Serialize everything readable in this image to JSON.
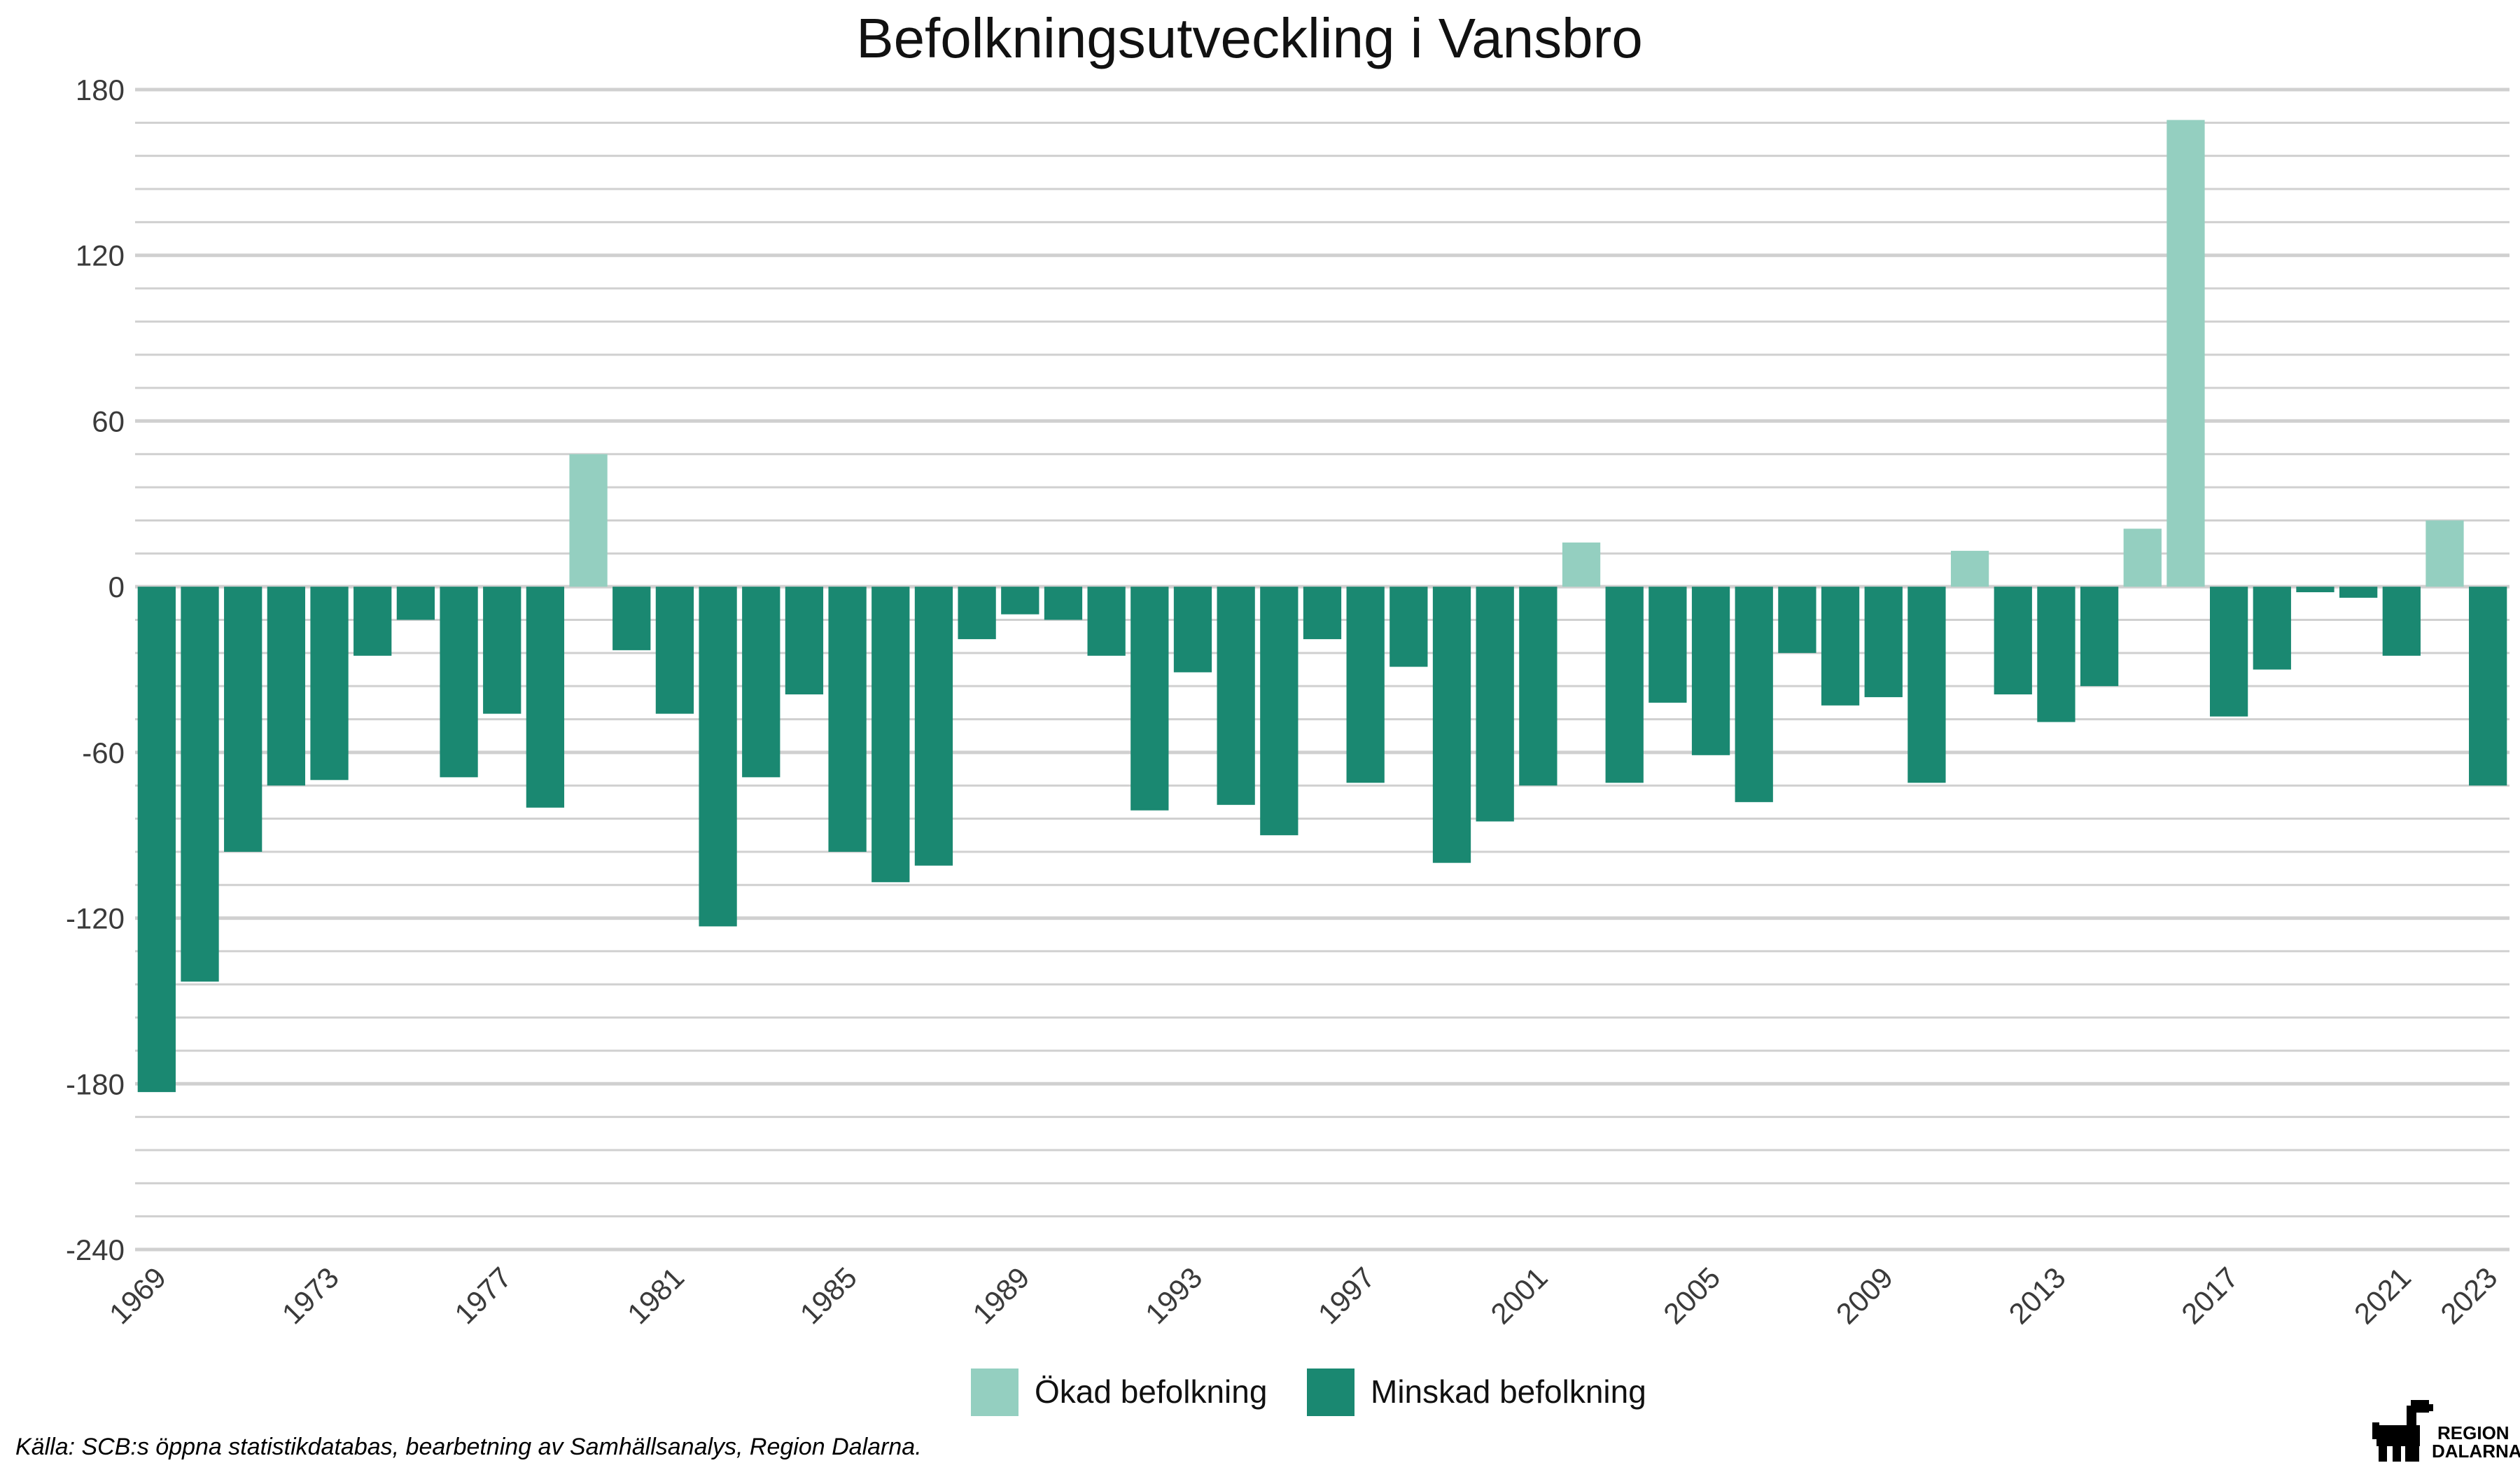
{
  "chart_data": {
    "type": "bar",
    "title": "Befolkningsutveckling i Vansbro",
    "xlabel": "",
    "ylabel": "",
    "ylim": [
      -240,
      180
    ],
    "yticks": [
      "180",
      "120",
      "60",
      "0",
      "-60",
      "-120",
      "-180",
      "-240"
    ],
    "ytick_values": [
      180,
      120,
      60,
      0,
      -60,
      -120,
      -180,
      -240
    ],
    "categories": [
      "1969",
      "1970",
      "1971",
      "1972",
      "1973",
      "1974",
      "1975",
      "1976",
      "1977",
      "1978",
      "1979",
      "1980",
      "1981",
      "1982",
      "1983",
      "1984",
      "1985",
      "1986",
      "1987",
      "1988",
      "1989",
      "1990",
      "1991",
      "1992",
      "1993",
      "1994",
      "1995",
      "1996",
      "1997",
      "1998",
      "1999",
      "2000",
      "2001",
      "2002",
      "2003",
      "2004",
      "2005",
      "2006",
      "2007",
      "2008",
      "2009",
      "2010",
      "2011",
      "2012",
      "2013",
      "2014",
      "2015",
      "2016",
      "2017",
      "2018",
      "2019",
      "2020",
      "2021",
      "2022",
      "2023"
    ],
    "x_tick_labels": [
      "1969",
      "1973",
      "1977",
      "1981",
      "1985",
      "1989",
      "1993",
      "1997",
      "2001",
      "2005",
      "2009",
      "2013",
      "2017",
      "2021",
      "2023"
    ],
    "values": [
      -183,
      -143,
      -96,
      -72,
      -70,
      -25,
      -12,
      -69,
      -46,
      -80,
      48,
      -23,
      -46,
      -123,
      -69,
      -39,
      -96,
      -107,
      -101,
      -19,
      -10,
      -12,
      -25,
      -81,
      -31,
      -79,
      -90,
      -19,
      -71,
      -29,
      -100,
      -85,
      -72,
      16,
      -71,
      -42,
      -61,
      -78,
      -24,
      -43,
      -40,
      -71,
      13,
      -39,
      -49,
      -36,
      21,
      169,
      -47,
      -30,
      -2,
      -4,
      -25,
      24,
      -72
    ],
    "legend": [
      {
        "name": "Ökad befolkning",
        "color": "#94cfc0"
      },
      {
        "name": "Minskad befolkning",
        "color": "#1a8871"
      }
    ],
    "legend_position": "bottom",
    "grid": true,
    "colors": {
      "positive": "#94cfc0",
      "negative": "#1a8871",
      "grid": "#d0d0d0"
    }
  },
  "footer": {
    "source": "Källa: SCB:s öppna statistikdatabas, bearbetning av Samhällsanalys, Region Dalarna.",
    "logo_line1": "REGION",
    "logo_line2": "DALARNA",
    "logo_icon": "dalahorse-icon"
  }
}
